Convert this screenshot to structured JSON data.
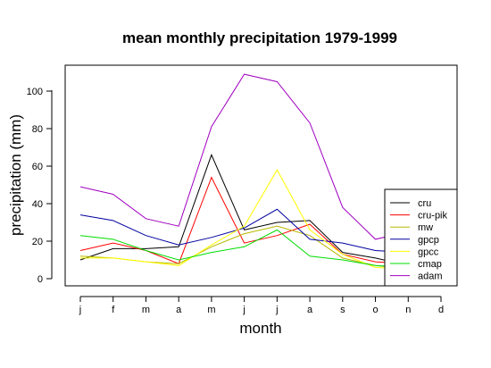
{
  "chart_data": {
    "type": "line",
    "title": "mean monthly precipitation 1979-1999",
    "xlabel": "month",
    "ylabel": "precipitation (mm)",
    "categories": [
      "j",
      "f",
      "m",
      "a",
      "m",
      "j",
      "j",
      "a",
      "s",
      "o",
      "n",
      "d"
    ],
    "yticks": [
      0,
      20,
      40,
      60,
      80,
      100
    ],
    "ylim": [
      -4,
      113
    ],
    "grid": false,
    "legend_position": "bottom-right",
    "series": [
      {
        "name": "cru",
        "color": "#000000",
        "values": [
          10,
          16,
          16,
          17,
          66,
          26,
          30,
          31,
          14,
          11,
          7,
          10
        ]
      },
      {
        "name": "cru-pik",
        "color": "#ff0000",
        "values": [
          15,
          19,
          15,
          8,
          54,
          19,
          23,
          29,
          13,
          9,
          8,
          11
        ]
      },
      {
        "name": "mw",
        "color": "#b8b800",
        "values": [
          12,
          11,
          9,
          8,
          17,
          24,
          28,
          23,
          11,
          7,
          5,
          8
        ]
      },
      {
        "name": "gpcp",
        "color": "#0000a0",
        "values": [
          34,
          31,
          23,
          18,
          22,
          27,
          37,
          21,
          19,
          15,
          14,
          22
        ]
      },
      {
        "name": "gpcc",
        "color": "#ffff00",
        "values": [
          11,
          11,
          9,
          7,
          18,
          28,
          58,
          26,
          13,
          6,
          5,
          8
        ]
      },
      {
        "name": "cmap",
        "color": "#00dd00",
        "values": [
          23,
          21,
          15,
          10,
          14,
          17,
          26,
          12,
          10,
          7,
          6,
          10
        ]
      },
      {
        "name": "adam",
        "color": "#a000c0",
        "values": [
          49,
          45,
          32,
          28,
          81,
          109,
          105,
          83,
          38,
          21,
          25,
          38
        ]
      }
    ]
  }
}
